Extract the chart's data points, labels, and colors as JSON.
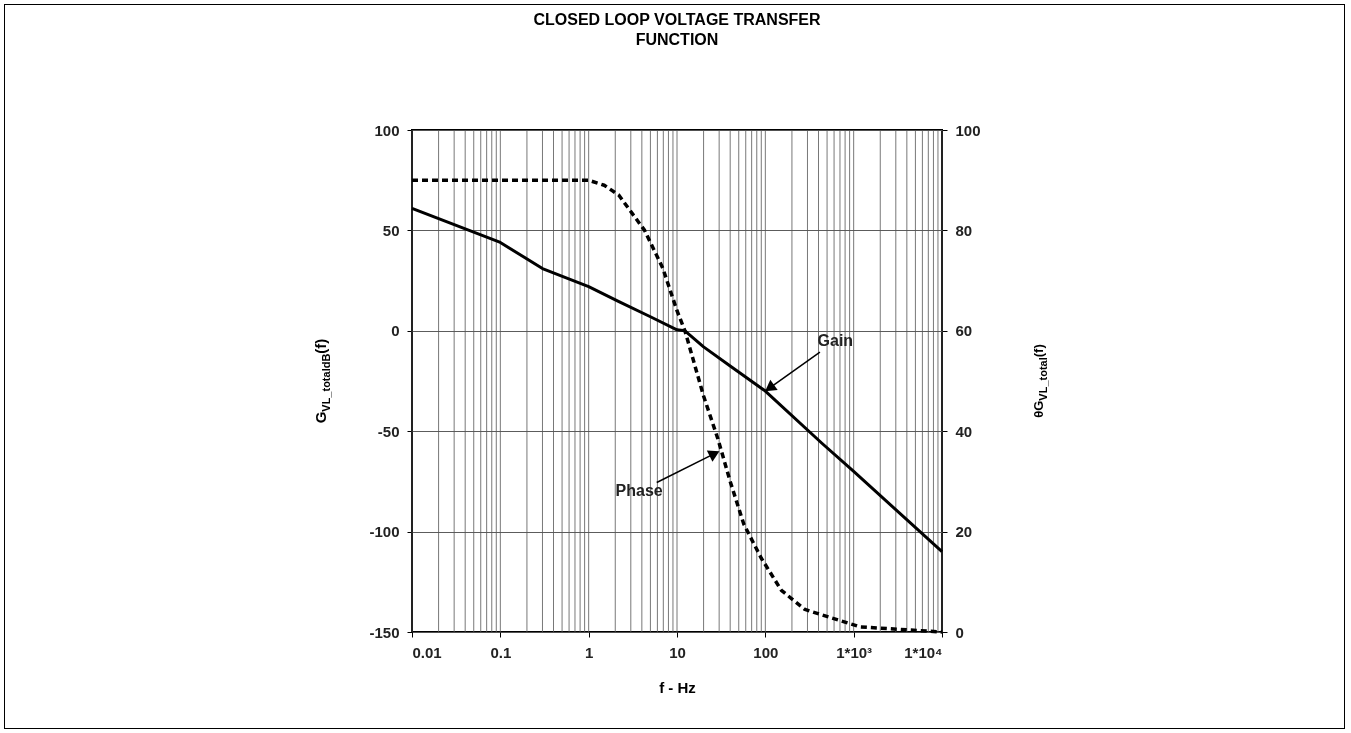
{
  "chart_data": {
    "type": "line",
    "title": "CLOSED LOOP VOLTAGE TRANSFER FUNCTION",
    "xlabel": "f - Hz",
    "ylabel": "G$_{VL_totaldB}$(f)",
    "y2label": "θG$_{VL_total}$(f)",
    "log": "x",
    "grid": true,
    "xlim": [
      0.01,
      10000
    ],
    "xticks": [
      0.01,
      0.1,
      1,
      10,
      100,
      {
        "value": 1000,
        "label": "1*10³"
      },
      {
        "value": 10000,
        "label": "1*10⁴"
      }
    ],
    "ylim": [
      -150,
      100
    ],
    "yticks": [
      -150,
      -100,
      -50,
      0,
      50,
      100
    ],
    "y2lim": [
      0,
      100
    ],
    "y2ticks": [
      0,
      20,
      40,
      60,
      80,
      100
    ],
    "series": [
      {
        "color": "#000000",
        "line_style": "solid",
        "x": [
          0.01,
          0.1,
          0.3,
          1,
          2.2,
          5,
          10,
          12.3,
          20,
          40,
          100,
          437,
          1000,
          10000
        ],
        "values": [
          61,
          44,
          31,
          22,
          14.5,
          7,
          0.5,
          0,
          -8,
          -17.5,
          -30,
          -56,
          -70,
          -110
        ]
      },
      {
        "color": "#000000",
        "line_style": "dashed",
        "axis": "y2",
        "x": [
          0.01,
          0.1,
          1,
          1.5,
          2.2,
          4.3,
          6.9,
          10,
          12.3,
          20,
          29,
          40,
          57,
          90,
          152,
          280,
          437,
          1200,
          10000
        ],
        "values": [
          90,
          90,
          90,
          89,
          87,
          80,
          72.5,
          64,
          60,
          47,
          38.5,
          30,
          21.5,
          14.7,
          8.3,
          4.5,
          3.4,
          1,
          0
        ]
      }
    ],
    "annotations": [
      {
        "text": "Gain",
        "x": 100,
        "y": -30
      },
      {
        "text": "Phase",
        "x": 30,
        "y": -60
      }
    ]
  }
}
